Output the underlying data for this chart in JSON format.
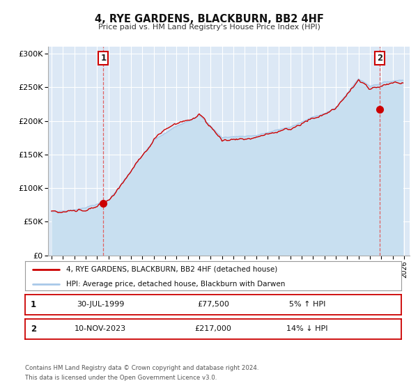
{
  "title": "4, RYE GARDENS, BLACKBURN, BB2 4HF",
  "subtitle": "Price paid vs. HM Land Registry's House Price Index (HPI)",
  "xlim": [
    1994.7,
    2026.5
  ],
  "ylim": [
    0,
    310000
  ],
  "yticks": [
    0,
    50000,
    100000,
    150000,
    200000,
    250000,
    300000
  ],
  "ytick_labels": [
    "£0",
    "£50K",
    "£100K",
    "£150K",
    "£200K",
    "£250K",
    "£300K"
  ],
  "xtick_years": [
    1995,
    1996,
    1997,
    1998,
    1999,
    2000,
    2001,
    2002,
    2003,
    2004,
    2005,
    2006,
    2007,
    2008,
    2009,
    2010,
    2011,
    2012,
    2013,
    2014,
    2015,
    2016,
    2017,
    2018,
    2019,
    2020,
    2021,
    2022,
    2023,
    2024,
    2025,
    2026
  ],
  "hpi_color": "#a8c8e8",
  "hpi_fill_color": "#c8dff0",
  "price_color": "#cc0000",
  "marker_color": "#cc0000",
  "vline_color": "#e06060",
  "plot_bg": "#dce8f5",
  "grid_color": "#ffffff",
  "sale1_x": 1999.57,
  "sale1_y": 77500,
  "sale1_label": "1",
  "sale1_date": "30-JUL-1999",
  "sale1_price": "£77,500",
  "sale1_hpi": "5% ↑ HPI",
  "sale2_x": 2023.87,
  "sale2_y": 217000,
  "sale2_label": "2",
  "sale2_date": "10-NOV-2023",
  "sale2_price": "£217,000",
  "sale2_hpi": "14% ↓ HPI",
  "legend_line1": "4, RYE GARDENS, BLACKBURN, BB2 4HF (detached house)",
  "legend_line2": "HPI: Average price, detached house, Blackburn with Darwen",
  "footer1": "Contains HM Land Registry data © Crown copyright and database right 2024.",
  "footer2": "This data is licensed under the Open Government Licence v3.0."
}
